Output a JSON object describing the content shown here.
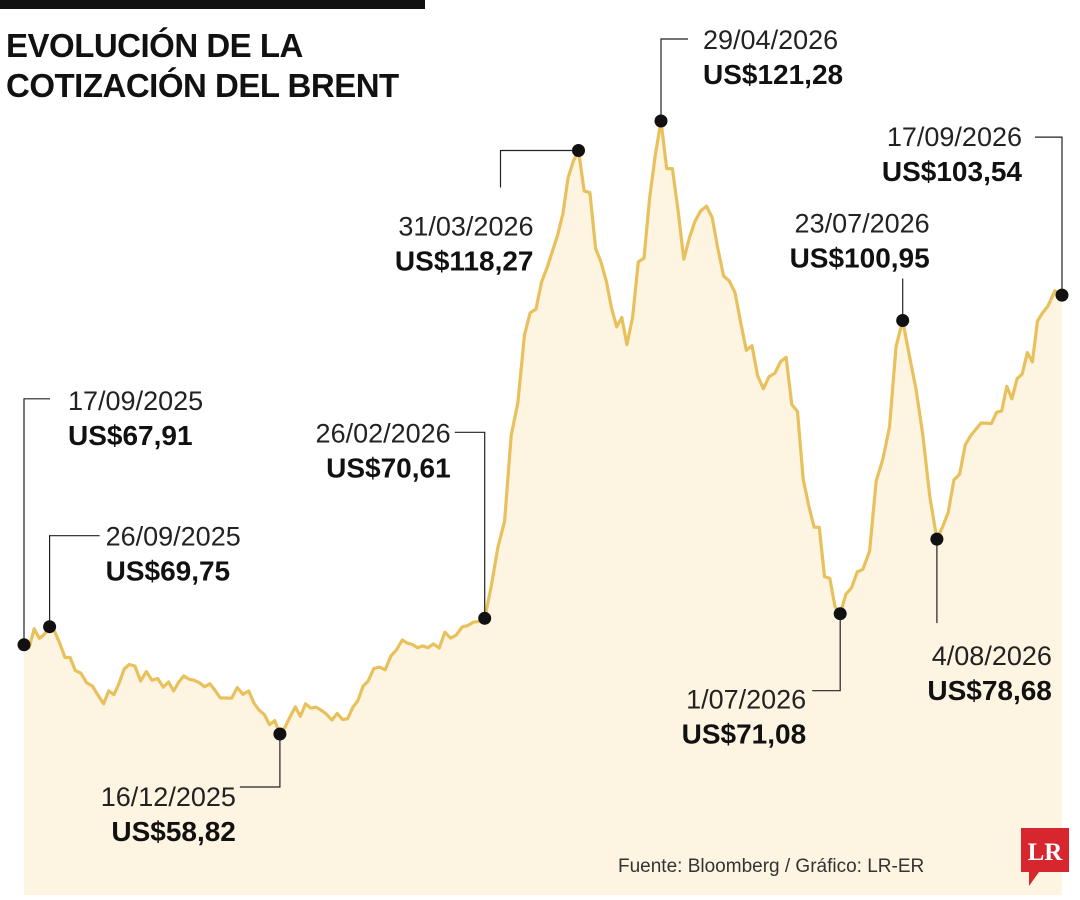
{
  "title_lines": [
    "EVOLUCIÓN DE LA",
    "COTIZACIÓN DEL BRENT"
  ],
  "source": "Fuente: Bloomberg / Gráfico: LR-ER",
  "logo_text": "LR",
  "colors": {
    "line": "#e8c15c",
    "fill": "#fdf4e2",
    "marker": "#111111",
    "text": "#111111",
    "logo": "#d7262e"
  },
  "chart_data": {
    "type": "area",
    "title": "EVOLUCIÓN DE LA COTIZACIÓN DEL BRENT",
    "xlabel": "",
    "ylabel": "",
    "unit": "US$",
    "ylim": [
      45,
      130
    ],
    "series": [
      {
        "name": "",
        "points": [
          [
            "17/09/2025",
            67.91
          ],
          [
            "26/09/2025",
            69.75
          ],
          [
            "5/10/2025",
            65.3
          ],
          [
            "15/10/2025",
            61.9
          ],
          [
            "24/10/2025",
            65.9
          ],
          [
            "5/11/2025",
            63.6
          ],
          [
            "14/11/2025",
            64.4
          ],
          [
            "25/11/2025",
            62.5
          ],
          [
            "5/12/2025",
            63.2
          ],
          [
            "16/12/2025",
            58.82
          ],
          [
            "25/12/2025",
            61.9
          ],
          [
            "7/01/2026",
            60.3
          ],
          [
            "16/01/2026",
            64.2
          ],
          [
            "28/01/2026",
            68.4
          ],
          [
            "6/02/2026",
            67.6
          ],
          [
            "16/02/2026",
            68.9
          ],
          [
            "26/02/2026",
            70.61
          ],
          [
            "5/03/2026",
            80.5
          ],
          [
            "12/03/2026",
            99.5
          ],
          [
            "20/03/2026",
            106.4
          ],
          [
            "31/03/2026",
            118.27
          ],
          [
            "8/04/2026",
            106.8
          ],
          [
            "17/04/2026",
            98.5
          ],
          [
            "29/04/2026",
            121.28
          ],
          [
            "7/05/2026",
            107.2
          ],
          [
            "15/05/2026",
            112.6
          ],
          [
            "25/05/2026",
            103.8
          ],
          [
            "4/06/2026",
            94.0
          ],
          [
            "12/06/2026",
            97.2
          ],
          [
            "20/06/2026",
            82.0
          ],
          [
            "1/07/2026",
            71.08
          ],
          [
            "9/07/2026",
            75.6
          ],
          [
            "16/07/2026",
            86.8
          ],
          [
            "23/07/2026",
            100.95
          ],
          [
            "30/07/2026",
            89.4
          ],
          [
            "4/08/2026",
            78.68
          ],
          [
            "14/08/2026",
            88.3
          ],
          [
            "25/08/2026",
            91.6
          ],
          [
            "3/09/2026",
            95.5
          ],
          [
            "12/09/2026",
            102.4
          ],
          [
            "17/09/2026",
            103.54
          ]
        ]
      }
    ],
    "annotations": [
      {
        "date": "17/09/2025",
        "label": "US$67,91",
        "value": 67.91
      },
      {
        "date": "26/09/2025",
        "label": "US$69,75",
        "value": 69.75
      },
      {
        "date": "16/12/2025",
        "label": "US$58,82",
        "value": 58.82
      },
      {
        "date": "26/02/2026",
        "label": "US$70,61",
        "value": 70.61
      },
      {
        "date": "31/03/2026",
        "label": "US$118,27",
        "value": 118.27
      },
      {
        "date": "29/04/2026",
        "label": "US$121,28",
        "value": 121.28
      },
      {
        "date": "1/07/2026",
        "label": "US$71,08",
        "value": 71.08
      },
      {
        "date": "23/07/2026",
        "label": "US$100,95",
        "value": 100.95
      },
      {
        "date": "4/08/2026",
        "label": "US$78,68",
        "value": 78.68
      },
      {
        "date": "17/09/2026",
        "label": "US$103,54",
        "value": 103.54
      }
    ],
    "grid": false,
    "legend": "none"
  }
}
